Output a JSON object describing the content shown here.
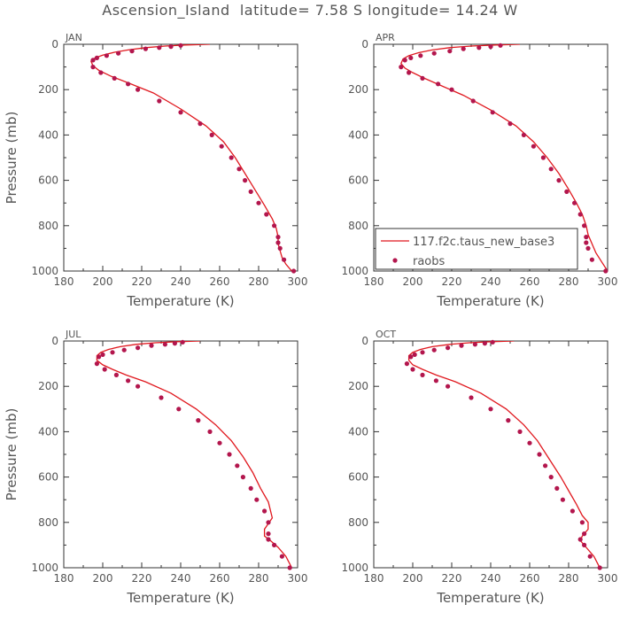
{
  "figure": {
    "title": "Ascension_Island  latitude= 7.58 S longitude= 14.24 W",
    "colors": {
      "model_line": "#e0181e",
      "obs_marker": "#b3164d",
      "axis": "#333333",
      "text": "#555555"
    }
  },
  "legend": {
    "panel": "APR",
    "entries": [
      {
        "label": "117.f2c.taus_new_base3",
        "kind": "line"
      },
      {
        "label": "raobs",
        "kind": "marker"
      }
    ]
  },
  "chart_data": [
    {
      "type": "line",
      "panel_label": "JAN",
      "xlabel": "Temperature (K)",
      "ylabel": "Pressure (mb)",
      "xlim": [
        180,
        300
      ],
      "ylim": [
        1000,
        0
      ],
      "xticks": [
        180,
        200,
        220,
        240,
        260,
        280,
        300
      ],
      "yticks": [
        0,
        200,
        400,
        600,
        800,
        1000
      ],
      "series": [
        {
          "name": "117.f2c.taus_new_base3",
          "kind": "line",
          "x": [
            255,
            242,
            232,
            222,
            213,
            206,
            200,
            196,
            194,
            195,
            198,
            204,
            213,
            226,
            240,
            253,
            262,
            268,
            273,
            278,
            283,
            287,
            289,
            290,
            290,
            291,
            292,
            294,
            297
          ],
          "y": [
            0,
            3,
            8,
            15,
            25,
            35,
            48,
            60,
            75,
            95,
            115,
            140,
            170,
            215,
            285,
            360,
            430,
            500,
            570,
            640,
            710,
            770,
            810,
            850,
            880,
            910,
            940,
            970,
            1000
          ]
        },
        {
          "name": "raobs",
          "kind": "marker",
          "x": [
            240,
            235,
            229,
            222,
            215,
            208,
            202,
            197,
            195,
            195,
            199,
            206,
            213,
            218,
            229,
            240,
            250,
            256,
            261,
            266,
            270,
            273,
            276,
            280,
            284,
            288,
            290,
            290,
            291,
            293,
            298
          ],
          "y": [
            5,
            10,
            15,
            20,
            30,
            40,
            50,
            60,
            70,
            100,
            125,
            150,
            175,
            200,
            250,
            300,
            350,
            400,
            450,
            500,
            550,
            600,
            650,
            700,
            750,
            800,
            850,
            875,
            900,
            950,
            1000
          ]
        }
      ]
    },
    {
      "type": "line",
      "panel_label": "APR",
      "xlabel": "Temperature (K)",
      "ylabel": "",
      "xlim": [
        180,
        300
      ],
      "ylim": [
        1000,
        0
      ],
      "xticks": [
        180,
        200,
        220,
        240,
        260,
        280,
        300
      ],
      "yticks": [
        0,
        200,
        400,
        600,
        800,
        1000
      ],
      "series": [
        {
          "name": "117.f2c.taus_new_base3",
          "kind": "line",
          "x": [
            255,
            242,
            230,
            219,
            210,
            203,
            198,
            195,
            194,
            196,
            200,
            206,
            214,
            226,
            240,
            253,
            262,
            269,
            275,
            280,
            284,
            287,
            289,
            290,
            292,
            294,
            297,
            300
          ],
          "y": [
            0,
            3,
            8,
            15,
            25,
            37,
            50,
            65,
            85,
            105,
            125,
            150,
            180,
            225,
            290,
            360,
            430,
            500,
            570,
            640,
            700,
            750,
            800,
            840,
            880,
            920,
            960,
            1000
          ]
        },
        {
          "name": "raobs",
          "kind": "marker",
          "x": [
            245,
            240,
            234,
            226,
            219,
            211,
            204,
            199,
            196,
            194,
            198,
            205,
            213,
            220,
            231,
            241,
            250,
            257,
            262,
            267,
            271,
            275,
            279,
            283,
            286,
            288,
            289,
            289,
            290,
            292,
            299
          ],
          "y": [
            5,
            10,
            15,
            20,
            30,
            40,
            50,
            60,
            70,
            100,
            125,
            150,
            175,
            200,
            250,
            300,
            350,
            400,
            450,
            500,
            550,
            600,
            650,
            700,
            750,
            800,
            850,
            875,
            900,
            950,
            1000
          ]
        }
      ]
    },
    {
      "type": "line",
      "panel_label": "JUL",
      "xlabel": "Temperature (K)",
      "ylabel": "Pressure (mb)",
      "xlim": [
        180,
        300
      ],
      "ylim": [
        1000,
        0
      ],
      "xticks": [
        180,
        200,
        220,
        240,
        260,
        280,
        300
      ],
      "yticks": [
        0,
        200,
        400,
        600,
        800,
        1000
      ],
      "series": [
        {
          "name": "117.f2c.taus_new_base3",
          "kind": "line",
          "x": [
            250,
            238,
            227,
            217,
            209,
            203,
            199,
            197,
            197,
            200,
            205,
            212,
            222,
            235,
            248,
            258,
            266,
            272,
            277,
            281,
            285,
            287,
            283,
            283,
            286,
            290,
            294,
            297
          ],
          "y": [
            0,
            3,
            8,
            15,
            25,
            37,
            50,
            65,
            85,
            105,
            125,
            150,
            180,
            230,
            300,
            370,
            440,
            510,
            580,
            650,
            710,
            780,
            830,
            860,
            880,
            910,
            950,
            1000
          ]
        },
        {
          "name": "raobs",
          "kind": "marker",
          "x": [
            241,
            237,
            232,
            225,
            218,
            211,
            205,
            200,
            198,
            197,
            201,
            207,
            213,
            218,
            230,
            239,
            249,
            255,
            260,
            265,
            269,
            272,
            276,
            279,
            283,
            285,
            285,
            285,
            288,
            292,
            296
          ],
          "y": [
            5,
            10,
            15,
            20,
            30,
            40,
            50,
            60,
            70,
            100,
            125,
            150,
            175,
            200,
            250,
            300,
            350,
            400,
            450,
            500,
            550,
            600,
            650,
            700,
            750,
            800,
            850,
            875,
            900,
            950,
            1000
          ]
        }
      ]
    },
    {
      "type": "line",
      "panel_label": "OCT",
      "xlabel": "Temperature (K)",
      "ylabel": "",
      "xlim": [
        180,
        300
      ],
      "ylim": [
        1000,
        0
      ],
      "xticks": [
        180,
        200,
        220,
        240,
        260,
        280,
        300
      ],
      "yticks": [
        0,
        200,
        400,
        600,
        800,
        1000
      ],
      "series": [
        {
          "name": "117.f2c.taus_new_base3",
          "kind": "line",
          "x": [
            252,
            240,
            229,
            219,
            210,
            204,
            200,
            198,
            198,
            200,
            205,
            212,
            222,
            235,
            248,
            257,
            264,
            270,
            276,
            280,
            284,
            287,
            290,
            290,
            287,
            286,
            289,
            293,
            296
          ],
          "y": [
            0,
            3,
            8,
            15,
            25,
            37,
            50,
            65,
            85,
            105,
            125,
            150,
            180,
            230,
            300,
            370,
            440,
            520,
            600,
            660,
            720,
            770,
            800,
            830,
            860,
            880,
            910,
            950,
            1000
          ]
        },
        {
          "name": "raobs",
          "kind": "marker",
          "x": [
            241,
            237,
            232,
            225,
            218,
            211,
            205,
            201,
            199,
            197,
            200,
            205,
            212,
            218,
            230,
            240,
            249,
            255,
            260,
            265,
            268,
            271,
            274,
            277,
            282,
            287,
            288,
            286,
            288,
            291,
            296
          ],
          "y": [
            5,
            10,
            15,
            20,
            30,
            40,
            50,
            60,
            70,
            100,
            125,
            150,
            175,
            200,
            250,
            300,
            350,
            400,
            450,
            500,
            550,
            600,
            650,
            700,
            750,
            800,
            850,
            875,
            900,
            950,
            1000
          ]
        }
      ]
    }
  ]
}
